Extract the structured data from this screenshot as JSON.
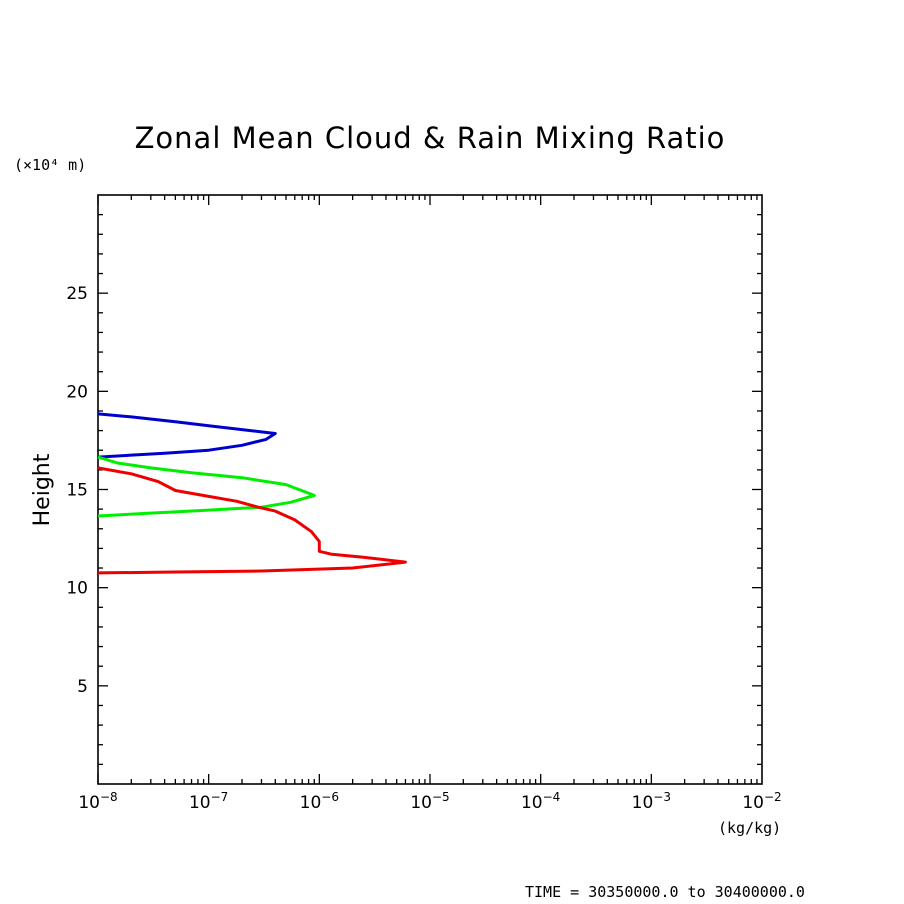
{
  "chart_data": {
    "type": "line",
    "title": "Zonal Mean Cloud & Rain Mixing Ratio",
    "ylabel": "Height",
    "y_unit": "(×10⁴ m)",
    "x_unit": "(kg/kg)",
    "footer": "TIME = 30350000.0 to 30400000.0",
    "xscale": "log",
    "xlim": [
      1e-08,
      0.01
    ],
    "ylim": [
      0,
      30
    ],
    "x_ticks": [
      {
        "value": 1e-08,
        "base": "10",
        "exp": "−8"
      },
      {
        "value": 1e-07,
        "base": "10",
        "exp": "−7"
      },
      {
        "value": 1e-06,
        "base": "10",
        "exp": "−6"
      },
      {
        "value": 1e-05,
        "base": "10",
        "exp": "−5"
      },
      {
        "value": 0.0001,
        "base": "10",
        "exp": "−4"
      },
      {
        "value": 0.001,
        "base": "10",
        "exp": "−3"
      },
      {
        "value": 0.01,
        "base": "10",
        "exp": "−2"
      }
    ],
    "y_ticks": [
      5,
      10,
      15,
      20,
      25
    ],
    "grid": false,
    "series": [
      {
        "color": "#0000cc",
        "points": [
          [
            1e-08,
            18.85
          ],
          [
            2e-08,
            18.7
          ],
          [
            5e-08,
            18.45
          ],
          [
            1e-07,
            18.25
          ],
          [
            2e-07,
            18.05
          ],
          [
            4e-07,
            17.85
          ],
          [
            3.3e-07,
            17.55
          ],
          [
            2e-07,
            17.25
          ],
          [
            1e-07,
            17.0
          ],
          [
            4e-08,
            16.85
          ],
          [
            1e-08,
            16.65
          ]
        ]
      },
      {
        "color": "#00ee00",
        "points": [
          [
            1e-08,
            16.65
          ],
          [
            1.5e-08,
            16.35
          ],
          [
            3e-08,
            16.1
          ],
          [
            7e-08,
            15.85
          ],
          [
            2e-07,
            15.6
          ],
          [
            5e-07,
            15.25
          ],
          [
            9e-07,
            14.7
          ],
          [
            5.5e-07,
            14.35
          ],
          [
            3e-07,
            14.1
          ],
          [
            1e-07,
            13.95
          ],
          [
            3e-08,
            13.8
          ],
          [
            1e-08,
            13.65
          ]
        ]
      },
      {
        "color": "#ee0000",
        "points": [
          [
            1e-08,
            16.1
          ],
          [
            2e-08,
            15.8
          ],
          [
            3.5e-08,
            15.4
          ],
          [
            5e-08,
            14.95
          ],
          [
            1e-07,
            14.65
          ],
          [
            1.8e-07,
            14.4
          ],
          [
            2.8e-07,
            14.1
          ],
          [
            4e-07,
            13.9
          ],
          [
            6e-07,
            13.45
          ],
          [
            8.5e-07,
            12.85
          ],
          [
            1e-06,
            12.35
          ],
          [
            1e-06,
            11.85
          ],
          [
            1.3e-06,
            11.7
          ],
          [
            2.5e-06,
            11.55
          ],
          [
            6e-06,
            11.3
          ],
          [
            2e-06,
            11.0
          ],
          [
            3e-07,
            10.85
          ],
          [
            5e-08,
            10.8
          ],
          [
            1e-08,
            10.75
          ]
        ]
      }
    ]
  }
}
